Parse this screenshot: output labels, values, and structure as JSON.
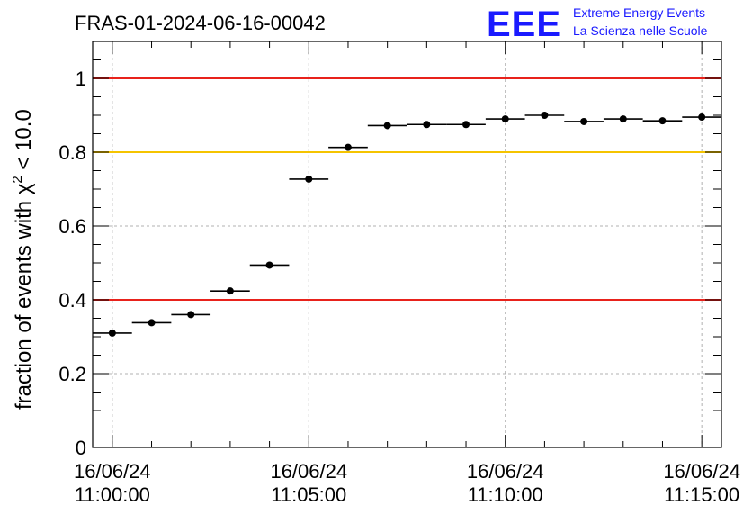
{
  "title": "FRAS-01-2024-06-16-00042",
  "logo": {
    "text": "EEE",
    "line1": "Extreme Energy Events",
    "line2": "La Scienza nelle Scuole"
  },
  "colors": {
    "threshold_red": "#e8221b",
    "threshold_yellow": "#f5c400",
    "logo_blue": "#1a1aff"
  },
  "chart_data": {
    "type": "scatter",
    "title": "FRAS-01-2024-06-16-00042",
    "xlabel": "",
    "ylabel": "fraction of events with χ² < 10.0",
    "ylabel_parts": {
      "main": "fraction of events with χ",
      "sup": "2",
      "rest": " < 10.0"
    },
    "xlim_minutes": [
      -0.5,
      15.5
    ],
    "ylim": [
      0,
      1.1
    ],
    "grid": true,
    "x_ticks": [
      {
        "minute": 0,
        "date": "16/06/24",
        "time": "11:00:00"
      },
      {
        "minute": 5,
        "date": "16/06/24",
        "time": "11:05:00"
      },
      {
        "minute": 10,
        "date": "16/06/24",
        "time": "11:10:00"
      },
      {
        "minute": 15,
        "date": "16/06/24",
        "time": "11:15:00"
      }
    ],
    "y_ticks": [
      "0",
      "0.2",
      "0.4",
      "0.6",
      "0.8",
      "1"
    ],
    "y_tick_values": [
      0,
      0.2,
      0.4,
      0.6,
      0.8,
      1.0
    ],
    "thresholds": [
      {
        "value": 1.0,
        "color": "red"
      },
      {
        "value": 0.8,
        "color": "yellow"
      },
      {
        "value": 0.4,
        "color": "red"
      }
    ],
    "bin_width_minutes": 1,
    "points": [
      {
        "x_minute": 0,
        "y": 0.31
      },
      {
        "x_minute": 1,
        "y": 0.338
      },
      {
        "x_minute": 2,
        "y": 0.36
      },
      {
        "x_minute": 3,
        "y": 0.424
      },
      {
        "x_minute": 4,
        "y": 0.494
      },
      {
        "x_minute": 5,
        "y": 0.727
      },
      {
        "x_minute": 6,
        "y": 0.813
      },
      {
        "x_minute": 7,
        "y": 0.872
      },
      {
        "x_minute": 8,
        "y": 0.875
      },
      {
        "x_minute": 9,
        "y": 0.875
      },
      {
        "x_minute": 10,
        "y": 0.89
      },
      {
        "x_minute": 11,
        "y": 0.9
      },
      {
        "x_minute": 12,
        "y": 0.883
      },
      {
        "x_minute": 13,
        "y": 0.89
      },
      {
        "x_minute": 14,
        "y": 0.885
      },
      {
        "x_minute": 15,
        "y": 0.895
      }
    ]
  }
}
